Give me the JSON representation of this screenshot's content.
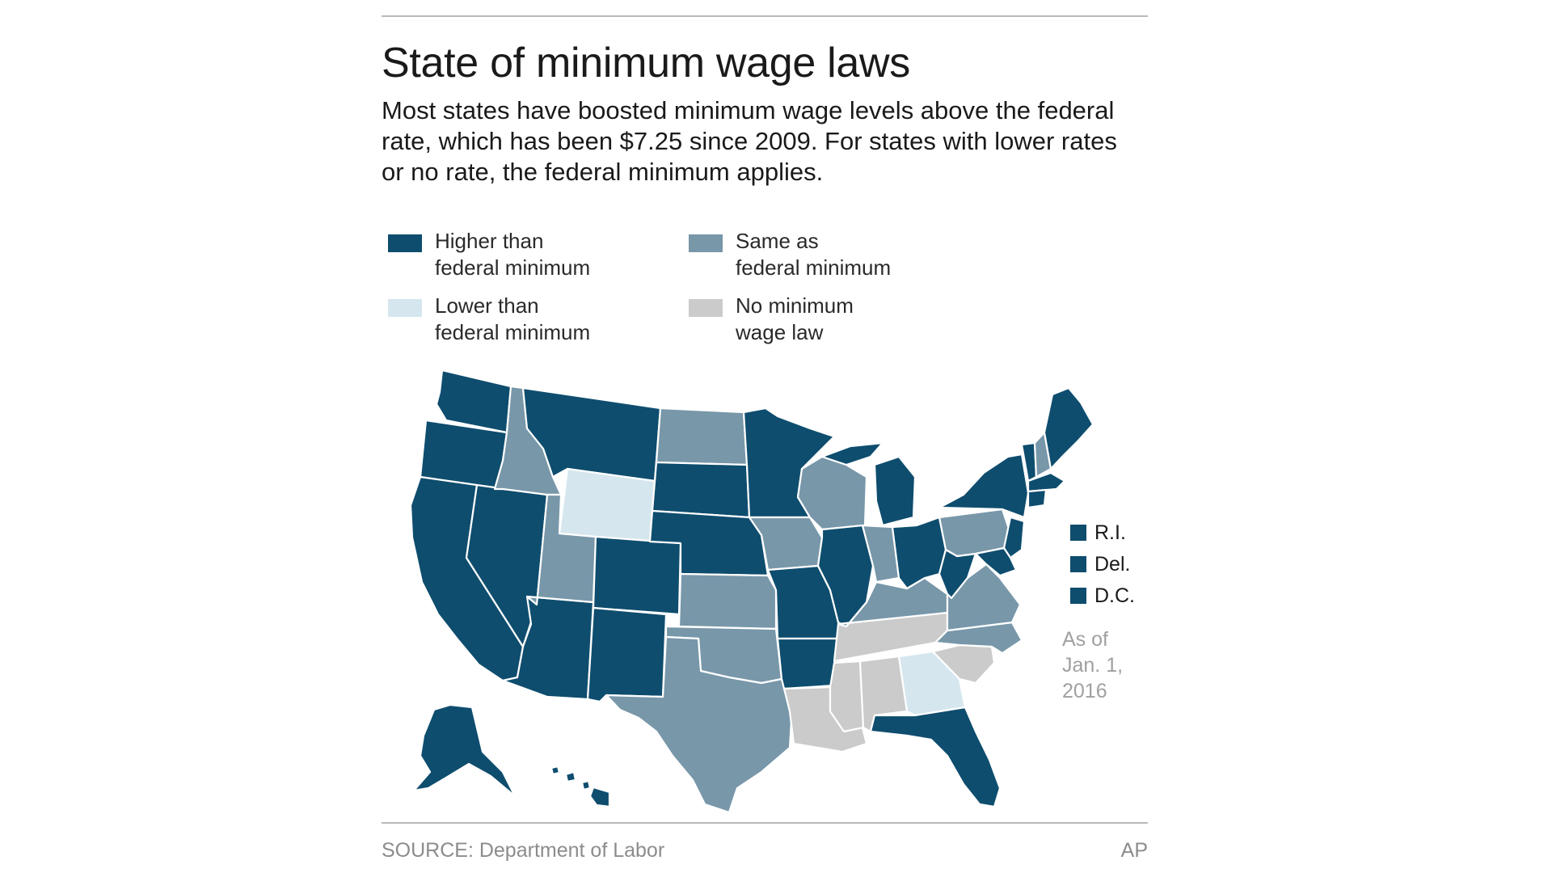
{
  "header": {
    "title": "State of minimum wage laws",
    "subtitle": "Most states have boosted minimum wage levels above the federal rate, which has been $7.25 since 2009. For states with lower rates or no rate, the federal minimum applies."
  },
  "legend": [
    {
      "key": "higher",
      "line1": "Higher than",
      "line2": "federal minimum",
      "color": "#0e4d6e"
    },
    {
      "key": "same",
      "line1": "Same as",
      "line2": "federal minimum",
      "color": "#7898aa"
    },
    {
      "key": "lower",
      "line1": "Lower than",
      "line2": "federal minimum",
      "color": "#d6e6ef"
    },
    {
      "key": "none",
      "line1": "No minimum",
      "line2": "wage law",
      "color": "#cbcbcb"
    }
  ],
  "small_states": [
    {
      "label": "R.I.",
      "category": "higher"
    },
    {
      "label": "Del.",
      "category": "higher"
    },
    {
      "label": "D.C.",
      "category": "higher"
    }
  ],
  "as_of": {
    "line1": "As of",
    "line2": "Jan. 1,",
    "line3": "2016"
  },
  "footer": {
    "source": "SOURCE: Department of Labor",
    "credit": "AP"
  },
  "state_categories": {
    "WA": "higher",
    "OR": "higher",
    "CA": "higher",
    "NV": "higher",
    "AZ": "higher",
    "ID": "same",
    "MT": "higher",
    "WY": "lower",
    "UT": "same",
    "CO": "higher",
    "NM": "higher",
    "ND": "same",
    "SD": "higher",
    "NE": "higher",
    "KS": "same",
    "OK": "same",
    "TX": "same",
    "MN": "higher",
    "IA": "same",
    "MO": "higher",
    "AR": "higher",
    "LA": "none",
    "WI": "same",
    "IL": "higher",
    "MS": "none",
    "MI": "higher",
    "IN": "same",
    "KY": "same",
    "TN": "none",
    "AL": "none",
    "OH": "higher",
    "WV": "higher",
    "VA": "same",
    "NC": "same",
    "SC": "none",
    "GA": "lower",
    "FL": "higher",
    "PA": "same",
    "NY": "higher",
    "VT": "higher",
    "NH": "same",
    "ME": "higher",
    "MA": "higher",
    "CT": "higher",
    "NJ": "higher",
    "MD": "higher",
    "AK": "higher",
    "HI": "higher"
  }
}
